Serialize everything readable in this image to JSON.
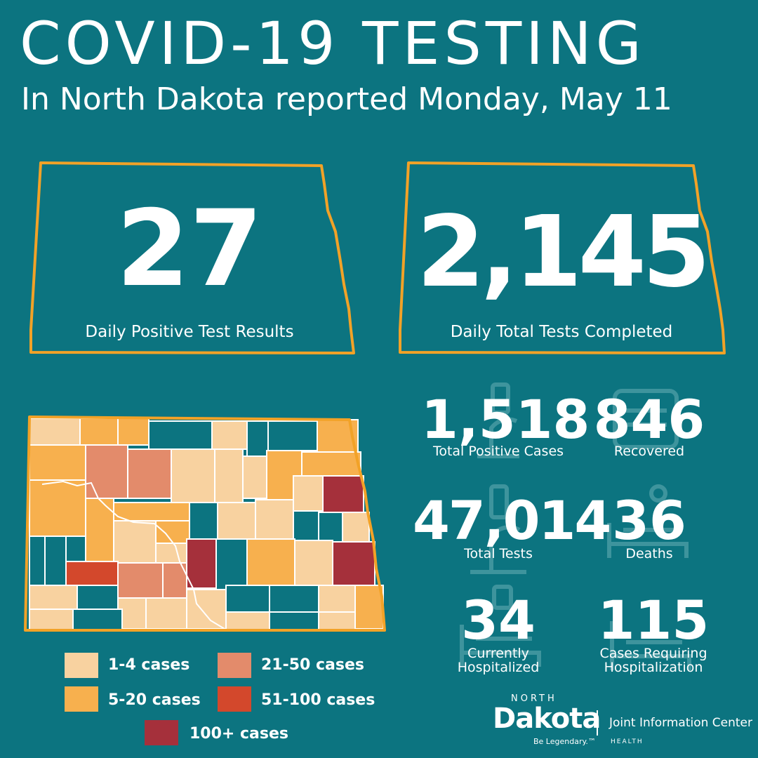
{
  "header": {
    "title": "COVID-19 TESTING",
    "subtitle": "In North Dakota reported Monday, May 11"
  },
  "cards": [
    {
      "value": "27",
      "label": "Daily Positive Test Results"
    },
    {
      "value": "2,145",
      "label": "Daily Total Tests Completed"
    }
  ],
  "stats": {
    "total_positive": {
      "value": "1,518",
      "label": "Total Positive Cases"
    },
    "recovered": {
      "value": "846",
      "label": "Recovered"
    },
    "total_tests": {
      "value": "47,014",
      "label": "Total Tests"
    },
    "deaths": {
      "value": "36",
      "label": "Deaths"
    },
    "currently_hospitalized": {
      "value": "34",
      "label_line1": "Currently",
      "label_line2": "Hospitalized"
    },
    "requiring_hospitalization": {
      "value": "115",
      "label_line1": "Cases Requiring",
      "label_line2": "Hospitalization"
    }
  },
  "legend": [
    {
      "label": "1-4 cases",
      "color": "#f8d2a0"
    },
    {
      "label": "21-50 cases",
      "color": "#e38b6b"
    },
    {
      "label": "5-20 cases",
      "color": "#f7b04e"
    },
    {
      "label": "51-100 cases",
      "color": "#d3482c"
    },
    {
      "label": "100+ cases",
      "color": "#a5303b"
    }
  ],
  "colors": {
    "background": "#0c7480",
    "outline": "#f2a227",
    "no_cases": "#0c7480"
  },
  "logo": {
    "north": "NORTH",
    "name": "Dakota",
    "tagline": "Be Legendary.™",
    "jic": "Joint Information Center",
    "health": "HEALTH"
  }
}
